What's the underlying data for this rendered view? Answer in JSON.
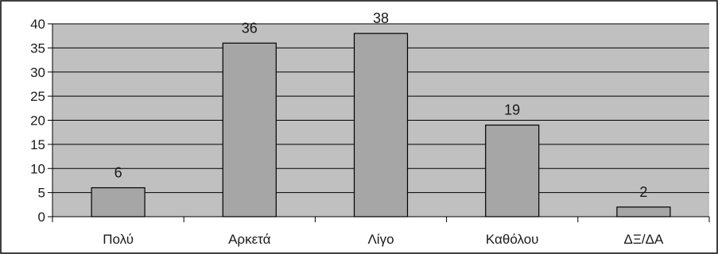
{
  "chart_data": {
    "type": "bar",
    "categories": [
      "Πολύ",
      "Αρκετά",
      "Λίγο",
      "Καθόλου",
      "ΔΞ/ΔΑ"
    ],
    "values": [
      6,
      36,
      38,
      19,
      2
    ],
    "data_labels": [
      "6",
      "36",
      "38",
      "19",
      "2"
    ],
    "title": "",
    "xlabel": "",
    "ylabel": "",
    "ylim": [
      0,
      40
    ],
    "yticks": [
      0,
      5,
      10,
      15,
      20,
      25,
      30,
      35,
      40
    ],
    "grid": true,
    "legend": "none",
    "colors": {
      "plot_background": "#c0c0c0",
      "bar_fill": "#a6a6a6",
      "bar_stroke": "#000000",
      "gridline": "#000000",
      "frame": "#000000"
    }
  }
}
